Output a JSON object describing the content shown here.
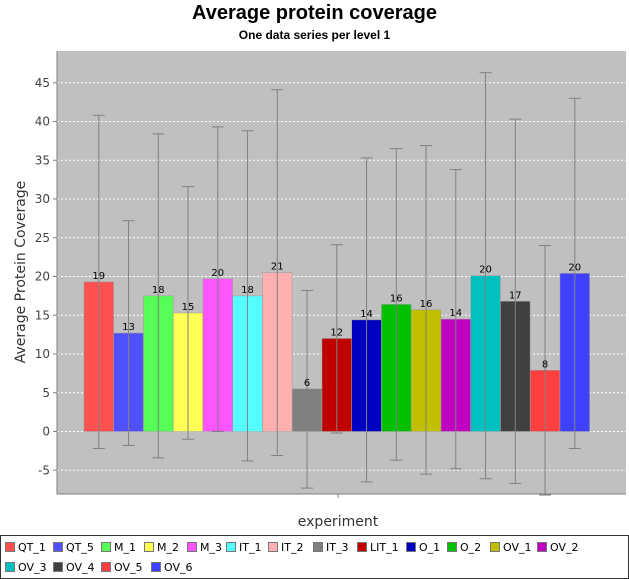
{
  "chart_data": {
    "type": "bar",
    "title": "Average protein coverage",
    "subtitle": "One data series per level 1",
    "xlabel": "experiment",
    "ylabel": "Average Protein Coverage",
    "ylim": [
      -8,
      48
    ],
    "yticks": [
      -5,
      0,
      5,
      10,
      15,
      20,
      25,
      30,
      35,
      40,
      45
    ],
    "grid": true,
    "legend_position": "bottom",
    "series": [
      {
        "name": "QT_1",
        "value": 19.3,
        "label": "19",
        "err_low": -2.2,
        "err_high": 40.8,
        "color": "#ff5050"
      },
      {
        "name": "QT_5",
        "value": 12.7,
        "label": "13",
        "err_low": -1.8,
        "err_high": 27.2,
        "color": "#5050ff"
      },
      {
        "name": "M_1",
        "value": 17.5,
        "label": "18",
        "err_low": -3.4,
        "err_high": 38.4,
        "color": "#55ff55"
      },
      {
        "name": "M_2",
        "value": 15.3,
        "label": "15",
        "err_low": -1.0,
        "err_high": 31.6,
        "color": "#ffff55"
      },
      {
        "name": "M_3",
        "value": 19.7,
        "label": "20",
        "err_low": 0.0,
        "err_high": 39.3,
        "color": "#ff55ff"
      },
      {
        "name": "IT_1",
        "value": 17.5,
        "label": "18",
        "err_low": -3.8,
        "err_high": 38.8,
        "color": "#55ffff"
      },
      {
        "name": "IT_2",
        "value": 20.5,
        "label": "21",
        "err_low": -3.1,
        "err_high": 44.1,
        "color": "#ffafaf"
      },
      {
        "name": "IT_3",
        "value": 5.5,
        "label": "6",
        "err_low": -7.3,
        "err_high": 18.2,
        "color": "#808080"
      },
      {
        "name": "LIT_1",
        "value": 12.0,
        "label": "12",
        "err_low": -0.2,
        "err_high": 24.1,
        "color": "#c00000"
      },
      {
        "name": "O_1",
        "value": 14.4,
        "label": "14",
        "err_low": -6.5,
        "err_high": 35.3,
        "color": "#0000c0"
      },
      {
        "name": "O_2",
        "value": 16.4,
        "label": "16",
        "err_low": -3.7,
        "err_high": 36.5,
        "color": "#00c000"
      },
      {
        "name": "OV_1",
        "value": 15.7,
        "label": "16",
        "err_low": -5.5,
        "err_high": 36.9,
        "color": "#c0c000"
      },
      {
        "name": "OV_2",
        "value": 14.5,
        "label": "14",
        "err_low": -4.8,
        "err_high": 33.8,
        "color": "#c000c0"
      },
      {
        "name": "OV_3",
        "value": 20.1,
        "label": "20",
        "err_low": -6.1,
        "err_high": 46.3,
        "color": "#00c0c0"
      },
      {
        "name": "OV_4",
        "value": 16.8,
        "label": "17",
        "err_low": -6.7,
        "err_high": 40.3,
        "color": "#404040"
      },
      {
        "name": "OV_5",
        "value": 7.9,
        "label": "8",
        "err_low": -8.2,
        "err_high": 24.0,
        "color": "#ff4040"
      },
      {
        "name": "OV_6",
        "value": 20.4,
        "label": "20",
        "err_low": -2.2,
        "err_high": 43.0,
        "color": "#4040ff"
      }
    ]
  }
}
